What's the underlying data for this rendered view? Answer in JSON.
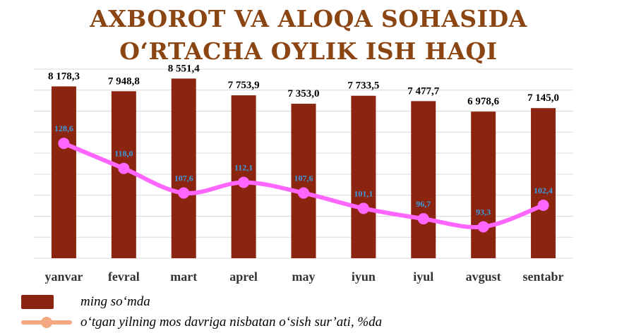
{
  "title_line1": "AXBOROT VA ALOQA SOHASIDA",
  "title_line2": "O‘RTACHA OYLIK ISH HAQI",
  "colors": {
    "title": "#8B4513",
    "bar": "#8B2510",
    "line": "#FF66FF",
    "line_labels": "#3B9BE0",
    "legend_line": "#F4A882",
    "grid": "#D9D9D9"
  },
  "chart_data": {
    "type": "bar",
    "categories": [
      "yanvar",
      "fevral",
      "mart",
      "aprel",
      "may",
      "iyun",
      "iyul",
      "avgust",
      "sentabr"
    ],
    "series": [
      {
        "name": "ming so‘mda",
        "type": "bar",
        "values": [
          8178.3,
          7948.8,
          8551.4,
          7753.9,
          7353.0,
          7733.5,
          7477.7,
          6978.6,
          7145.0
        ],
        "labels": [
          "8 178,3",
          "7 948,8",
          "8 551,4",
          "7 753,9",
          "7 353,0",
          "7 733,5",
          "7 477,7",
          "6 978,6",
          "7 145,0"
        ]
      },
      {
        "name": "o‘tgan yilning mos davriga nisbatan o‘sish sur’ati, %da",
        "type": "line",
        "values": [
          128.6,
          118.0,
          107.6,
          112.1,
          107.6,
          101.1,
          96.7,
          93.3,
          102.4
        ],
        "labels": [
          "128,6",
          "118,0",
          "107,6",
          "112,1",
          "107,6",
          "101,1",
          "96,7",
          "93,3",
          "102,4"
        ]
      }
    ],
    "ylim_bar": [
      0,
      9000
    ],
    "ylim_line": [
      80,
      160
    ],
    "grid": true,
    "legend_position": "bottom-left"
  }
}
